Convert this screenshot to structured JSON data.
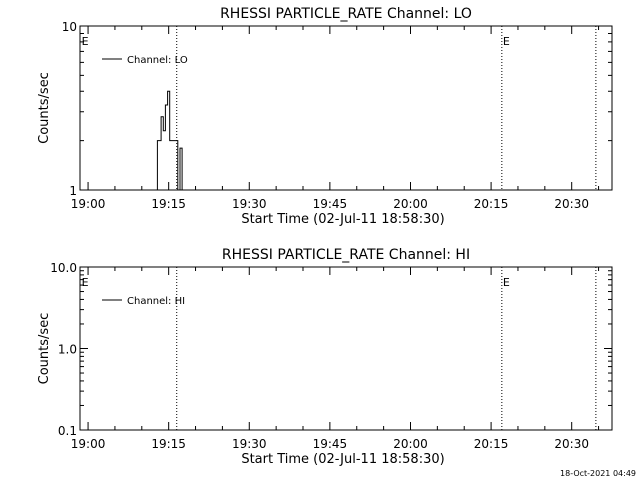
{
  "chart_data": [
    {
      "type": "line",
      "title": "RHESSI PARTICLE_RATE Channel: LO",
      "xlabel": "Start Time (02-Jul-11 18:58:30)",
      "ylabel": "Counts/sec",
      "yscale": "log",
      "ylim": [
        1,
        10
      ],
      "ytick_values": [
        1,
        10
      ],
      "ytick_labels": [
        "1",
        "10"
      ],
      "xtick_labels": [
        "19:00",
        "19:15",
        "19:30",
        "19:45",
        "20:00",
        "20:15",
        "20:30"
      ],
      "xlim_minutes": [
        -1.5,
        97.5
      ],
      "grid": false,
      "legend": {
        "position": "top-left",
        "entries": [
          "Channel: LO"
        ]
      },
      "vlines_minutes": [
        16.5,
        77.0,
        94.5
      ],
      "event_markers": [
        {
          "label": "E",
          "x_minutes": -1.2
        },
        {
          "label": "E",
          "x_minutes": 77.2
        }
      ],
      "series": [
        {
          "name": "Channel: LO",
          "x_minutes": [
            12.5,
            12.9,
            12.9,
            13.6,
            13.6,
            14.0,
            14.0,
            14.4,
            14.4,
            14.8,
            14.8,
            15.2,
            15.2,
            15.6,
            15.6,
            16.2,
            16.2,
            16.7,
            16.7,
            17.1,
            17.1,
            17.5,
            17.5,
            17.9
          ],
          "values": [
            1,
            1,
            2,
            2,
            2.8,
            2.8,
            2.3,
            2.3,
            3.3,
            3.3,
            4.0,
            4.0,
            2.0,
            2.0,
            2.0,
            2.0,
            2.0,
            2.0,
            1,
            1,
            1.8,
            1.8,
            1,
            1
          ]
        }
      ]
    },
    {
      "type": "line",
      "title": "RHESSI PARTICLE_RATE Channel: HI",
      "xlabel": "Start Time (02-Jul-11 18:58:30)",
      "ylabel": "Counts/sec",
      "yscale": "log",
      "ylim": [
        0.1,
        10
      ],
      "ytick_values": [
        0.1,
        1,
        10
      ],
      "ytick_labels": [
        "0.1",
        "1.0",
        "10.0"
      ],
      "xtick_labels": [
        "19:00",
        "19:15",
        "19:30",
        "19:45",
        "20:00",
        "20:15",
        "20:30"
      ],
      "xlim_minutes": [
        -1.5,
        97.5
      ],
      "grid": false,
      "legend": {
        "position": "top-left",
        "entries": [
          "Channel: HI"
        ]
      },
      "vlines_minutes": [
        16.5,
        77.0,
        94.5
      ],
      "event_markers": [
        {
          "label": "E",
          "x_minutes": -1.2
        },
        {
          "label": "E",
          "x_minutes": 77.2
        }
      ],
      "series": [
        {
          "name": "Channel: HI",
          "x_minutes": [],
          "values": []
        }
      ]
    }
  ],
  "footer": {
    "timestamp": "18-Oct-2021 04:49"
  }
}
